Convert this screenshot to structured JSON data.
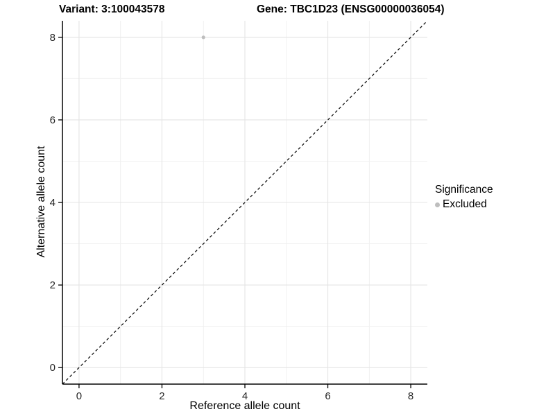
{
  "chart_data": {
    "type": "scatter",
    "titles": {
      "left": "Variant: 3:100043578",
      "right": "Gene: TBC1D23 (ENSG00000036054)"
    },
    "xlabel": "Reference allele count",
    "ylabel": "Alternative allele count",
    "xlim": [
      -0.4,
      8.4
    ],
    "ylim": [
      -0.4,
      8.4
    ],
    "xticks": [
      0,
      2,
      4,
      6,
      8
    ],
    "yticks": [
      0,
      2,
      4,
      6,
      8
    ],
    "xminor": [
      1,
      3,
      5,
      7
    ],
    "yminor": [
      1,
      3,
      5,
      7
    ],
    "grid": true,
    "points": [
      {
        "x": 3,
        "y": 8,
        "series": "Excluded"
      }
    ],
    "reference_line": {
      "type": "identity",
      "style": "dashed"
    },
    "legend": {
      "title": "Significance",
      "position": "right",
      "items": [
        {
          "label": "Excluded",
          "color": "#bebebe"
        }
      ]
    },
    "colors": {
      "point": "#bebebe",
      "grid_major": "#e4e4e4",
      "grid_minor": "#efefef",
      "axis": "#000000",
      "dashed_line": "#111111",
      "tick_label": "#262626"
    }
  }
}
